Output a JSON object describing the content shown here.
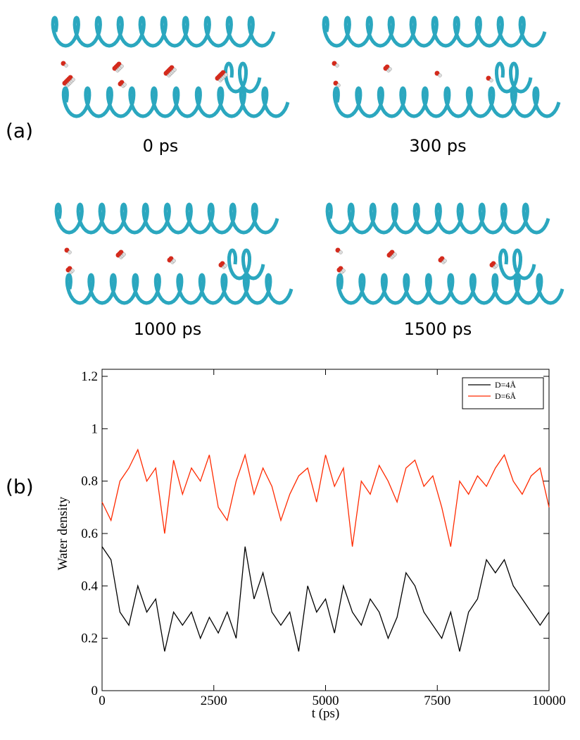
{
  "panel_a": {
    "label": "(a)",
    "snapshots": [
      "0 ps",
      "300 ps",
      "1000 ps",
      "1500 ps"
    ]
  },
  "panel_b": {
    "label": "(b)"
  },
  "chart_data": {
    "type": "line",
    "xlabel": "t (ps)",
    "ylabel": "Water density",
    "x": [
      0,
      200,
      400,
      600,
      800,
      1000,
      1200,
      1400,
      1600,
      1800,
      2000,
      2200,
      2400,
      2600,
      2800,
      3000,
      3200,
      3400,
      3600,
      3800,
      4000,
      4200,
      4400,
      4600,
      4800,
      5000,
      5200,
      5400,
      5600,
      5800,
      6000,
      6200,
      6400,
      6600,
      6800,
      7000,
      7200,
      7400,
      7600,
      7800,
      8000,
      8200,
      8400,
      8600,
      8800,
      9000,
      9200,
      9400,
      9600,
      9800,
      10000
    ],
    "series": [
      {
        "name": "D=4Å",
        "color": "#000000",
        "values": [
          0.55,
          0.5,
          0.3,
          0.25,
          0.4,
          0.3,
          0.35,
          0.15,
          0.3,
          0.25,
          0.3,
          0.2,
          0.28,
          0.22,
          0.3,
          0.2,
          0.55,
          0.35,
          0.45,
          0.3,
          0.25,
          0.3,
          0.15,
          0.4,
          0.3,
          0.35,
          0.22,
          0.4,
          0.3,
          0.25,
          0.35,
          0.3,
          0.2,
          0.28,
          0.45,
          0.4,
          0.3,
          0.25,
          0.2,
          0.3,
          0.15,
          0.3,
          0.35,
          0.5,
          0.45,
          0.5,
          0.4,
          0.35,
          0.3,
          0.25,
          0.3
        ]
      },
      {
        "name": "D=6Å",
        "color": "#ff2a00",
        "values": [
          0.72,
          0.65,
          0.8,
          0.85,
          0.92,
          0.8,
          0.85,
          0.6,
          0.88,
          0.75,
          0.85,
          0.8,
          0.9,
          0.7,
          0.65,
          0.8,
          0.9,
          0.75,
          0.85,
          0.78,
          0.65,
          0.75,
          0.82,
          0.85,
          0.72,
          0.9,
          0.78,
          0.85,
          0.55,
          0.8,
          0.75,
          0.86,
          0.8,
          0.72,
          0.85,
          0.88,
          0.78,
          0.82,
          0.7,
          0.55,
          0.8,
          0.75,
          0.82,
          0.78,
          0.85,
          0.9,
          0.8,
          0.75,
          0.82,
          0.85,
          0.7
        ]
      }
    ],
    "xlim": [
      0,
      10000
    ],
    "xticks": [
      0,
      2500,
      5000,
      7500,
      10000
    ],
    "ylim": [
      0,
      1.2
    ],
    "yticks": [
      0,
      0.2,
      0.4,
      0.6,
      0.8,
      1,
      1.2
    ],
    "legend": "upper right"
  }
}
